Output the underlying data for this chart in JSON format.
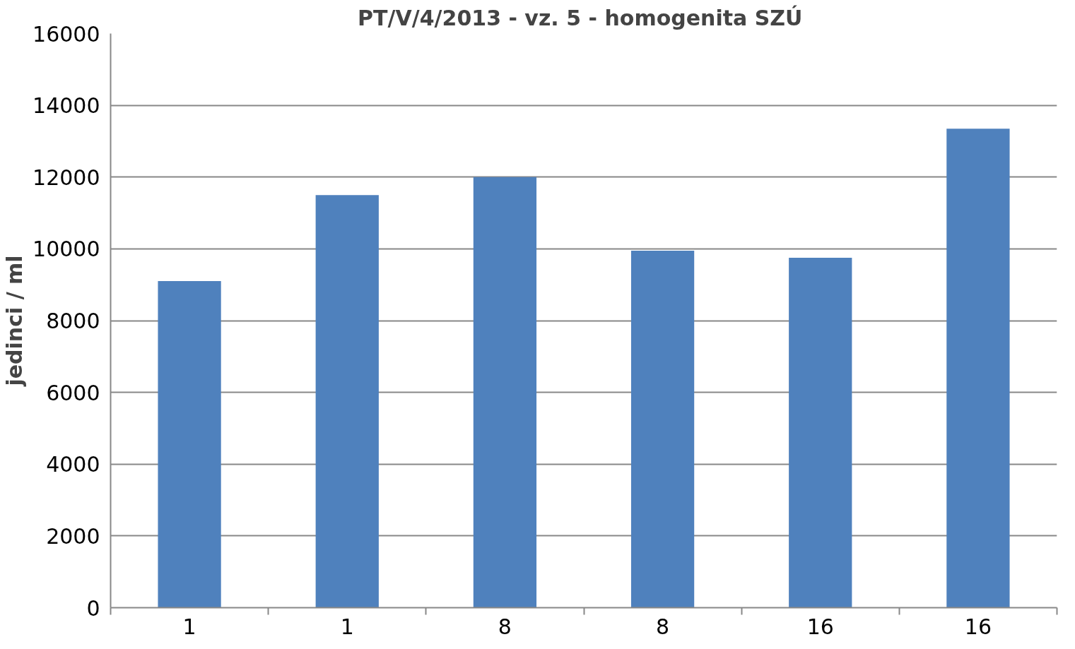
{
  "chart_data": {
    "type": "bar",
    "title": "PT/V/4/2013 - vz. 5 - homogenita  SZÚ",
    "ylabel": "jedinci / ml",
    "categories": [
      "1",
      "1",
      "8",
      "8",
      "16",
      "16"
    ],
    "values": [
      9100,
      11500,
      12000,
      9950,
      9750,
      13350
    ],
    "color": "#4f81bd",
    "ylim": [
      0,
      16000
    ],
    "yticks": [
      0,
      2000,
      4000,
      6000,
      8000,
      10000,
      12000,
      14000,
      16000
    ],
    "grid": "y"
  }
}
